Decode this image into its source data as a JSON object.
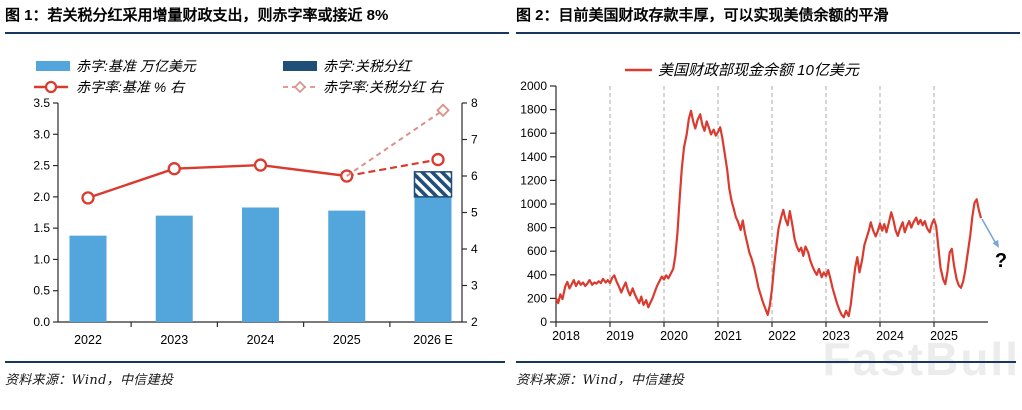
{
  "colors": {
    "navy_rule": "#17375E",
    "bar_blue": "#53A6DB",
    "bar_navy": "#1F4E79",
    "line_red": "#D93B2F",
    "line_pink": "#DE8F88",
    "arrow_blue": "#7BA7D7",
    "grid_gray": "#ABABAB",
    "axis_dark": "#2B2B2B",
    "watermark_gray": "#ECECEC"
  },
  "left_panel": {
    "title": "图 1：若关税分红采用增量财政支出，则赤字率或接近 8%",
    "source": "资料来源：Wind，中信建投"
  },
  "right_panel": {
    "title": "图 2：目前美国财政存款丰厚，可以实现美债余额的平滑",
    "source": "资料来源：Wind，中信建投",
    "watermark": "FastBull"
  },
  "chart_data": [
    {
      "type": "bar",
      "subtype": "bar-line-combo",
      "categories": [
        "2022",
        "2023",
        "2024",
        "2025",
        "2026 E"
      ],
      "left_axis": {
        "min": 0,
        "max": 3.5,
        "step": 0.5
      },
      "right_axis": {
        "min": 2,
        "max": 8,
        "step": 1
      },
      "series": [
        {
          "name": "赤字:基准 万亿美元",
          "type": "bar",
          "axis": "left",
          "values": [
            1.38,
            1.7,
            1.83,
            1.78,
            2.0
          ]
        },
        {
          "name": "赤字:关税分红",
          "type": "bar",
          "axis": "left",
          "stacked_on": 0,
          "hatched": true,
          "values": [
            null,
            null,
            null,
            null,
            0.4
          ]
        },
        {
          "name": "赤字率:基准 % 右",
          "type": "line",
          "axis": "right",
          "marker": "circle",
          "solid_to_index": 3,
          "values": [
            5.4,
            6.2,
            6.3,
            6.0,
            6.45
          ]
        },
        {
          "name": "赤字率:关税分红 右",
          "type": "line",
          "axis": "right",
          "marker": "diamond",
          "dashed": true,
          "values": [
            null,
            null,
            null,
            6.0,
            7.8
          ]
        }
      ]
    },
    {
      "type": "line",
      "legend": "美国财政部现金余额 10亿美元",
      "x_tick_labels": [
        "2018",
        "2019",
        "2020",
        "2021",
        "2022",
        "2023",
        "2024",
        "2025"
      ],
      "x_range": [
        2018,
        2026
      ],
      "ylim": [
        0,
        2000
      ],
      "y_step": 200,
      "grid": "vertical-dashed",
      "annotation": {
        "symbol": "?"
      },
      "points": [
        [
          2018.0,
          200
        ],
        [
          2018.04,
          160
        ],
        [
          2018.08,
          235
        ],
        [
          2018.12,
          195
        ],
        [
          2018.17,
          300
        ],
        [
          2018.21,
          340
        ],
        [
          2018.25,
          285
        ],
        [
          2018.29,
          320
        ],
        [
          2018.33,
          355
        ],
        [
          2018.37,
          305
        ],
        [
          2018.42,
          345
        ],
        [
          2018.46,
          315
        ],
        [
          2018.5,
          335
        ],
        [
          2018.54,
          305
        ],
        [
          2018.58,
          325
        ],
        [
          2018.62,
          355
        ],
        [
          2018.67,
          315
        ],
        [
          2018.71,
          335
        ],
        [
          2018.75,
          325
        ],
        [
          2018.79,
          345
        ],
        [
          2018.83,
          330
        ],
        [
          2018.87,
          365
        ],
        [
          2018.92,
          335
        ],
        [
          2018.96,
          355
        ],
        [
          2019.0,
          330
        ],
        [
          2019.04,
          375
        ],
        [
          2019.08,
          395
        ],
        [
          2019.12,
          345
        ],
        [
          2019.17,
          295
        ],
        [
          2019.21,
          250
        ],
        [
          2019.25,
          295
        ],
        [
          2019.29,
          335
        ],
        [
          2019.33,
          270
        ],
        [
          2019.37,
          225
        ],
        [
          2019.42,
          285
        ],
        [
          2019.46,
          235
        ],
        [
          2019.5,
          195
        ],
        [
          2019.54,
          160
        ],
        [
          2019.58,
          215
        ],
        [
          2019.62,
          145
        ],
        [
          2019.67,
          185
        ],
        [
          2019.71,
          125
        ],
        [
          2019.75,
          165
        ],
        [
          2019.79,
          205
        ],
        [
          2019.83,
          255
        ],
        [
          2019.87,
          305
        ],
        [
          2019.92,
          350
        ],
        [
          2019.96,
          385
        ],
        [
          2020.0,
          360
        ],
        [
          2020.04,
          395
        ],
        [
          2020.08,
          370
        ],
        [
          2020.12,
          405
        ],
        [
          2020.17,
          450
        ],
        [
          2020.21,
          560
        ],
        [
          2020.25,
          760
        ],
        [
          2020.29,
          1050
        ],
        [
          2020.33,
          1300
        ],
        [
          2020.37,
          1480
        ],
        [
          2020.42,
          1590
        ],
        [
          2020.46,
          1720
        ],
        [
          2020.5,
          1790
        ],
        [
          2020.54,
          1700
        ],
        [
          2020.58,
          1640
        ],
        [
          2020.62,
          1710
        ],
        [
          2020.67,
          1760
        ],
        [
          2020.71,
          1670
        ],
        [
          2020.75,
          1620
        ],
        [
          2020.79,
          1700
        ],
        [
          2020.83,
          1650
        ],
        [
          2020.87,
          1590
        ],
        [
          2020.92,
          1630
        ],
        [
          2020.96,
          1580
        ],
        [
          2021.0,
          1610
        ],
        [
          2021.04,
          1650
        ],
        [
          2021.08,
          1560
        ],
        [
          2021.12,
          1440
        ],
        [
          2021.17,
          1290
        ],
        [
          2021.21,
          1130
        ],
        [
          2021.25,
          1030
        ],
        [
          2021.29,
          960
        ],
        [
          2021.33,
          890
        ],
        [
          2021.37,
          850
        ],
        [
          2021.42,
          780
        ],
        [
          2021.46,
          860
        ],
        [
          2021.5,
          750
        ],
        [
          2021.54,
          670
        ],
        [
          2021.58,
          590
        ],
        [
          2021.62,
          540
        ],
        [
          2021.67,
          460
        ],
        [
          2021.71,
          380
        ],
        [
          2021.75,
          290
        ],
        [
          2021.79,
          230
        ],
        [
          2021.83,
          170
        ],
        [
          2021.87,
          120
        ],
        [
          2021.92,
          60
        ],
        [
          2021.96,
          140
        ],
        [
          2022.0,
          280
        ],
        [
          2022.04,
          480
        ],
        [
          2022.08,
          640
        ],
        [
          2022.12,
          790
        ],
        [
          2022.17,
          890
        ],
        [
          2022.21,
          950
        ],
        [
          2022.25,
          870
        ],
        [
          2022.29,
          820
        ],
        [
          2022.33,
          940
        ],
        [
          2022.37,
          840
        ],
        [
          2022.42,
          700
        ],
        [
          2022.46,
          640
        ],
        [
          2022.5,
          600
        ],
        [
          2022.54,
          630
        ],
        [
          2022.58,
          560
        ],
        [
          2022.62,
          640
        ],
        [
          2022.67,
          590
        ],
        [
          2022.71,
          520
        ],
        [
          2022.75,
          470
        ],
        [
          2022.79,
          430
        ],
        [
          2022.83,
          400
        ],
        [
          2022.87,
          450
        ],
        [
          2022.92,
          380
        ],
        [
          2022.96,
          420
        ],
        [
          2023.0,
          390
        ],
        [
          2023.04,
          440
        ],
        [
          2023.08,
          370
        ],
        [
          2023.12,
          290
        ],
        [
          2023.17,
          210
        ],
        [
          2023.21,
          150
        ],
        [
          2023.25,
          100
        ],
        [
          2023.29,
          60
        ],
        [
          2023.33,
          40
        ],
        [
          2023.37,
          95
        ],
        [
          2023.42,
          50
        ],
        [
          2023.46,
          150
        ],
        [
          2023.5,
          310
        ],
        [
          2023.54,
          460
        ],
        [
          2023.58,
          550
        ],
        [
          2023.62,
          420
        ],
        [
          2023.67,
          530
        ],
        [
          2023.71,
          650
        ],
        [
          2023.75,
          710
        ],
        [
          2023.79,
          770
        ],
        [
          2023.83,
          845
        ],
        [
          2023.87,
          780
        ],
        [
          2023.92,
          725
        ],
        [
          2023.96,
          770
        ],
        [
          2024.0,
          835
        ],
        [
          2024.04,
          775
        ],
        [
          2024.08,
          830
        ],
        [
          2024.12,
          760
        ],
        [
          2024.17,
          855
        ],
        [
          2024.21,
          930
        ],
        [
          2024.25,
          860
        ],
        [
          2024.29,
          775
        ],
        [
          2024.33,
          730
        ],
        [
          2024.37,
          790
        ],
        [
          2024.42,
          845
        ],
        [
          2024.46,
          760
        ],
        [
          2024.5,
          815
        ],
        [
          2024.54,
          855
        ],
        [
          2024.58,
          800
        ],
        [
          2024.62,
          845
        ],
        [
          2024.67,
          885
        ],
        [
          2024.71,
          830
        ],
        [
          2024.75,
          865
        ],
        [
          2024.79,
          820
        ],
        [
          2024.83,
          855
        ],
        [
          2024.87,
          795
        ],
        [
          2024.92,
          760
        ],
        [
          2024.96,
          830
        ],
        [
          2025.0,
          870
        ],
        [
          2025.04,
          810
        ],
        [
          2025.08,
          640
        ],
        [
          2025.12,
          460
        ],
        [
          2025.17,
          360
        ],
        [
          2025.21,
          320
        ],
        [
          2025.25,
          430
        ],
        [
          2025.29,
          590
        ],
        [
          2025.33,
          620
        ],
        [
          2025.37,
          480
        ],
        [
          2025.42,
          360
        ],
        [
          2025.46,
          310
        ],
        [
          2025.5,
          290
        ],
        [
          2025.54,
          345
        ],
        [
          2025.58,
          440
        ],
        [
          2025.62,
          570
        ],
        [
          2025.67,
          730
        ],
        [
          2025.71,
          890
        ],
        [
          2025.75,
          1010
        ],
        [
          2025.79,
          1040
        ],
        [
          2025.83,
          950
        ],
        [
          2025.87,
          880
        ]
      ]
    }
  ]
}
